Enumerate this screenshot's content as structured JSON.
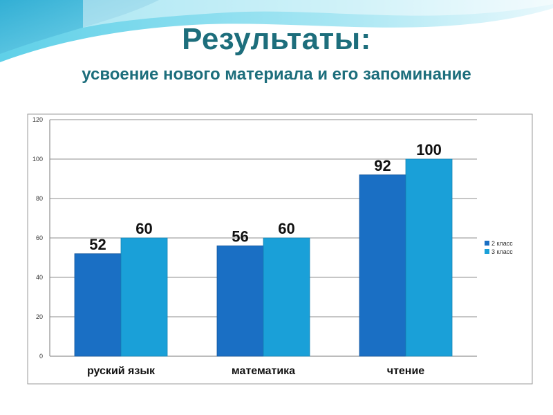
{
  "slide": {
    "title": "Результаты:",
    "subtitle": "усвоение нового материала и его запоминание"
  },
  "chart_data": {
    "type": "bar",
    "categories": [
      "руский язык",
      "математика",
      "чтение"
    ],
    "series": [
      {
        "name": "2 класс",
        "values": [
          52,
          56,
          92
        ],
        "color": "#1a6fc4"
      },
      {
        "name": "3 класс",
        "values": [
          60,
          60,
          100
        ],
        "color": "#1aa0d8"
      }
    ],
    "y_ticks": [
      "0",
      "20",
      "40",
      "60",
      "80",
      "100",
      "120"
    ],
    "ylim": [
      0,
      120
    ],
    "grid": true,
    "legend_position": "right",
    "data_labels": true
  },
  "colors": {
    "title": "#1d6e7c",
    "accent_wave": "#4fc3e0"
  }
}
